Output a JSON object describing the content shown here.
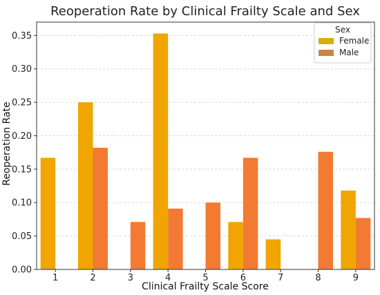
{
  "chart_data": {
    "type": "bar",
    "title": "Reoperation Rate by Clinical Frailty Scale and Sex",
    "xlabel": "Clinical Frailty Scale Score",
    "ylabel": "Reoperation Rate",
    "categories": [
      "1",
      "2",
      "3",
      "4",
      "5",
      "6",
      "7",
      "8",
      "9"
    ],
    "series": [
      {
        "name": "Female",
        "values": [
          0.167,
          0.25,
          null,
          0.353,
          null,
          0.071,
          0.045,
          null,
          0.118
        ],
        "color": "#f0a500"
      },
      {
        "name": "Male",
        "values": [
          null,
          0.182,
          0.071,
          0.091,
          0.1,
          0.167,
          null,
          0.176,
          0.077
        ],
        "color": "#f27a33"
      }
    ],
    "ylim": [
      0,
      0.37
    ],
    "yticks": [
      "0.00",
      "0.05",
      "0.10",
      "0.15",
      "0.20",
      "0.25",
      "0.30",
      "0.35"
    ],
    "grid": true,
    "legend": {
      "title": "Sex",
      "placement": "top-right",
      "female_swatch": "#d4b106",
      "male_swatch": "#cd853f"
    }
  }
}
